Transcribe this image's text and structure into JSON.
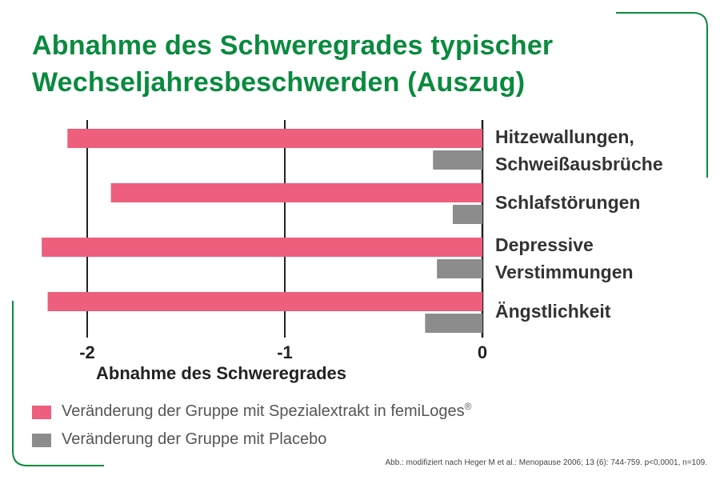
{
  "title_lines": [
    "Abnahme des Schweregrades typischer",
    "Wechseljahresbeschwerden (Auszug)"
  ],
  "chart_data": {
    "type": "bar",
    "orientation": "horizontal",
    "categories": [
      [
        "Hitzewallungen,",
        "Schweißausbrüche"
      ],
      [
        "Schlafstörungen"
      ],
      [
        "Depressive",
        "Verstimmungen"
      ],
      [
        "Ängstlichkeit"
      ]
    ],
    "series": [
      {
        "name": "Veränderung der Gruppe mit Spezialextrakt in femiLoges",
        "name_superscript": "®",
        "color": "#ee5e7d",
        "values": [
          -2.1,
          -1.88,
          -2.23,
          -2.2
        ]
      },
      {
        "name": "Veränderung der Gruppe mit Placebo",
        "color": "#8c8c8c",
        "values": [
          -0.25,
          -0.15,
          -0.23,
          -0.29
        ]
      }
    ],
    "xlim": [
      -2.3,
      0
    ],
    "ticks": [
      -2,
      -1,
      0
    ],
    "tick_labels": [
      "-2",
      "-1",
      "0"
    ],
    "xlabel": "Abnahme des Schweregrades",
    "gridlines": true,
    "legend_position": "bottom-left"
  },
  "footnote": "Abb.: modifiziert nach Heger M et al.: Menopause 2006; 13 (6): 744-759. p<0,0001, n=109.",
  "colors": {
    "title": "#0a8a3e",
    "frame": "#0a8a3e"
  }
}
